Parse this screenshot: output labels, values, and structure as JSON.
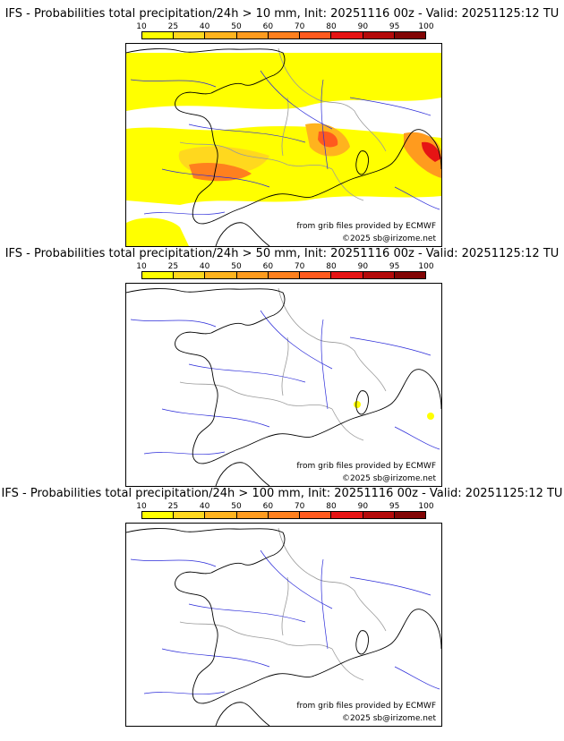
{
  "colorbar": {
    "ticks": [
      "10",
      "25",
      "40",
      "50",
      "60",
      "70",
      "80",
      "90",
      "95",
      "100"
    ],
    "colors": [
      "#ffff00",
      "#ffd81e",
      "#ffb31e",
      "#ff9b1e",
      "#ff801e",
      "#ff5a1e",
      "#e61414",
      "#b40a0a",
      "#820505",
      "#5a0000"
    ]
  },
  "panels": [
    {
      "title": "IFS - Probabilities total precipitation/24h > 10 mm, Init: 20251116 00z - Valid: 20251125:12 TU",
      "credit_grib": "from grib files provided by ECMWF",
      "credit_copy": "©2025 sb@irizome.net",
      "field": "heavy"
    },
    {
      "title": "IFS - Probabilities total precipitation/24h > 50 mm, Init: 20251116 00z - Valid: 20251125:12 TU",
      "credit_grib": "from grib files provided by ECMWF",
      "credit_copy": "©2025 sb@irizome.net",
      "field": "light"
    },
    {
      "title": "IFS - Probabilities total precipitation/24h > 100 mm, Init: 20251116 00z - Valid: 20251125:12 TU",
      "credit_grib": "from grib files provided by ECMWF",
      "credit_copy": "©2025 sb@irizome.net",
      "field": "none"
    }
  ]
}
